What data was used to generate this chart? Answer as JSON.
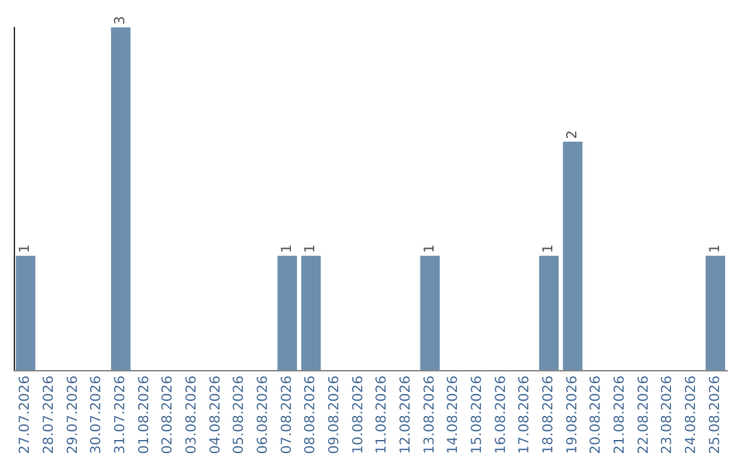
{
  "chart_data": {
    "type": "bar",
    "categories": [
      "27.07.2026",
      "28.07.2026",
      "29.07.2026",
      "30.07.2026",
      "31.07.2026",
      "01.08.2026",
      "02.08.2026",
      "03.08.2026",
      "04.08.2026",
      "05.08.2026",
      "06.08.2026",
      "07.08.2026",
      "08.08.2026",
      "09.08.2026",
      "10.08.2026",
      "11.08.2026",
      "12.08.2026",
      "13.08.2026",
      "14.08.2026",
      "15.08.2026",
      "16.08.2026",
      "17.08.2026",
      "18.08.2026",
      "19.08.2026",
      "20.08.2026",
      "21.08.2026",
      "22.08.2026",
      "23.08.2026",
      "24.08.2026",
      "25.08.2026"
    ],
    "values": [
      1,
      0,
      0,
      0,
      3,
      0,
      0,
      0,
      0,
      0,
      0,
      1,
      1,
      0,
      0,
      0,
      0,
      1,
      0,
      0,
      0,
      0,
      1,
      2,
      0,
      0,
      0,
      0,
      0,
      1
    ],
    "value_labels": [
      "1",
      null,
      null,
      null,
      "3",
      null,
      null,
      null,
      null,
      null,
      null,
      "1",
      "1",
      null,
      null,
      null,
      null,
      "1",
      null,
      null,
      null,
      null,
      "1",
      "2",
      null,
      null,
      null,
      null,
      null,
      "1"
    ],
    "color": "#6d8fad",
    "tick_labels": "x"
  }
}
